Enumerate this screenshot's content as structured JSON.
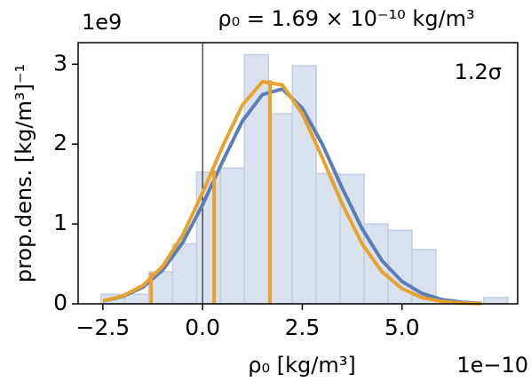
{
  "chart_data": {
    "type": "histogram",
    "title": "ρ₀ = 1.69 × 10⁻¹⁰ kg/m³",
    "annotation": "1.2σ",
    "x_label": "ρ₀ [kg/m³]",
    "y_label": "prop.dens. [kg/m³]⁻¹",
    "x_offset_label": "1e−10",
    "y_offset_label": "1e9",
    "bins": [
      -2.55,
      -1.95,
      -1.35,
      -0.75,
      -0.15,
      0.45,
      1.05,
      1.65,
      2.25,
      2.85,
      3.45,
      4.05,
      4.65,
      5.25,
      5.85,
      6.45,
      7.05,
      7.65
    ],
    "counts": [
      0.12,
      0.12,
      0.4,
      0.75,
      1.65,
      1.7,
      3.12,
      2.38,
      2.98,
      1.63,
      1.62,
      1.0,
      0.92,
      0.68,
      0,
      0,
      0.08
    ],
    "color": "#dbe2ef",
    "edge_color": "#c3cee2",
    "curves": [
      {
        "color": "#5a7fb8",
        "x": [
          -2.5,
          -2.0,
          -1.5,
          -1.0,
          -0.5,
          0,
          0.5,
          1.0,
          1.5,
          2.0,
          2.5,
          3.0,
          3.5,
          4.0,
          4.5,
          5.0,
          5.5,
          6.0,
          6.5,
          7.0
        ],
        "values": [
          0.036,
          0.092,
          0.208,
          0.423,
          0.765,
          1.24,
          1.78,
          2.29,
          2.62,
          2.69,
          2.45,
          2.0,
          1.45,
          0.94,
          0.54,
          0.28,
          0.13,
          0.053,
          0.019,
          0.006
        ]
      },
      {
        "color": "#e8a32e",
        "x": [
          -2.5,
          -2.0,
          -1.5,
          -1.0,
          -0.5,
          0,
          0.5,
          1.0,
          1.5,
          2.0,
          2.5,
          3.0,
          3.5,
          4.0,
          4.5,
          5.0,
          5.5,
          6.0,
          6.5,
          7.0
        ],
        "values": [
          0.037,
          0.098,
          0.228,
          0.471,
          0.86,
          1.39,
          1.97,
          2.49,
          2.78,
          2.74,
          2.38,
          1.83,
          1.25,
          0.75,
          0.4,
          0.19,
          0.078,
          0.029,
          0.009,
          0.003
        ]
      }
    ],
    "markers": {
      "color": "#e8a32e",
      "x": [
        -1.29,
        0.29,
        1.69
      ],
      "values": [
        0.39,
        1.67,
        2.8
      ]
    },
    "reference_line": {
      "x": 0,
      "color": "#000000"
    },
    "xlim": [
      -3.12,
      7.9
    ],
    "ylim": [
      0,
      3.27
    ],
    "xticks": [
      {
        "value": -2.5,
        "label": "−2.5"
      },
      {
        "value": 0,
        "label": "0.0"
      },
      {
        "value": 2.5,
        "label": "2.5"
      },
      {
        "value": 5,
        "label": "5.0"
      }
    ],
    "yticks": [
      0,
      1,
      2,
      3
    ]
  }
}
